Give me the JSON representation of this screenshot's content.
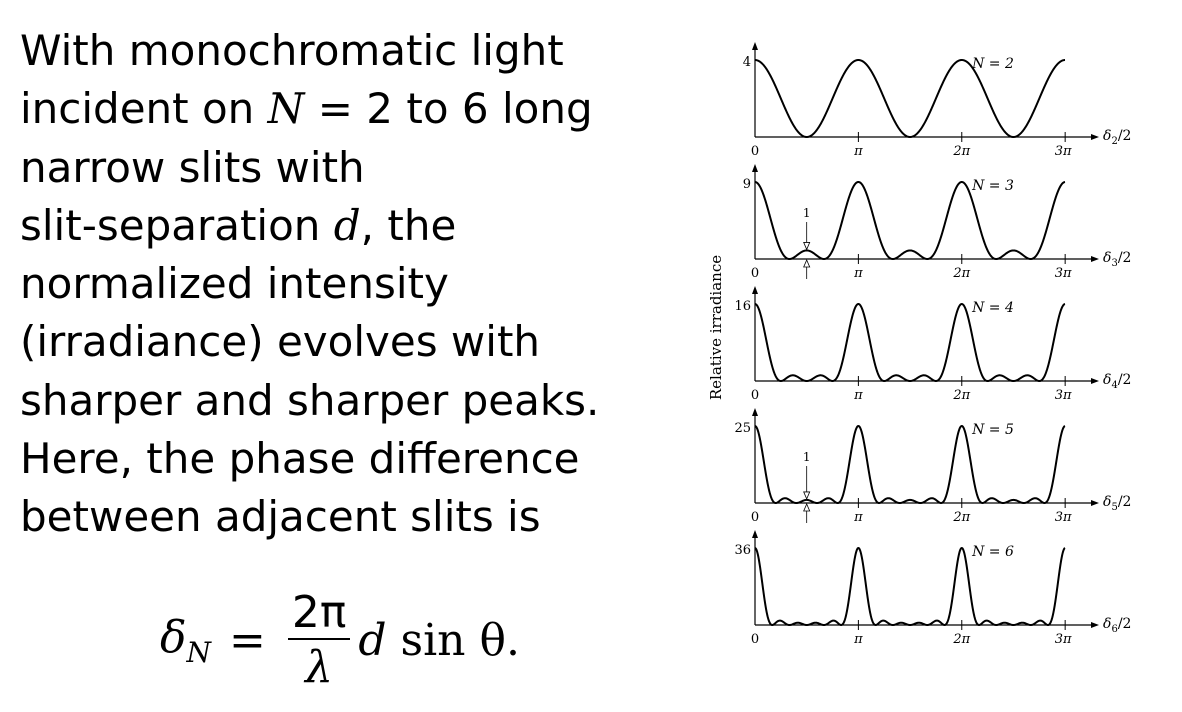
{
  "text": {
    "line1": "With monochromatic light",
    "line2_pre": "incident on ",
    "line2_var": "N",
    "line2_post": " = 2 to 6 long",
    "line3": "narrow slits with",
    "line4_pre": "slit-separation ",
    "line4_var": "d",
    "line4_post": ", the",
    "line5": "normalized intensity",
    "line6": "(irradiance) evolves with",
    "line7": "sharper and sharper peaks.",
    "line8": "Here, the phase difference",
    "line9": "between adjacent slits is"
  },
  "equation": {
    "lhs": "δ",
    "lhs_sub": "N",
    "equals": "=",
    "numerator": "2π",
    "denominator": "λ",
    "rest_var": "d",
    "rest_tail": " sin θ."
  },
  "chart_data": {
    "type": "line",
    "ylabel": "Relative irradiance",
    "x_ticks": [
      "0",
      "π",
      "2π",
      "3π"
    ],
    "xlim": [
      0,
      9.42
    ],
    "panels": [
      {
        "N": 2,
        "label": "N = 2",
        "peak": "4",
        "xlabel": "δ2/2",
        "xlabel_main": "δ",
        "xlabel_sub": "2",
        "xlabel_tail": "/2",
        "arrow": false
      },
      {
        "N": 3,
        "label": "N = 3",
        "peak": "9",
        "xlabel": "δ3/2",
        "xlabel_main": "δ",
        "xlabel_sub": "3",
        "xlabel_tail": "/2",
        "arrow": true,
        "arrow_label": "1"
      },
      {
        "N": 4,
        "label": "N = 4",
        "peak": "16",
        "xlabel": "δ4/2",
        "xlabel_main": "δ",
        "xlabel_sub": "4",
        "xlabel_tail": "/2",
        "arrow": false
      },
      {
        "N": 5,
        "label": "N = 5",
        "peak": "25",
        "xlabel": "δ5/2",
        "xlabel_main": "δ",
        "xlabel_sub": "5",
        "xlabel_tail": "/2",
        "arrow": true,
        "arrow_label": "1"
      },
      {
        "N": 6,
        "label": "N = 6",
        "peak": "36",
        "xlabel": "δ6/2",
        "xlabel_main": "δ",
        "xlabel_sub": "6",
        "xlabel_tail": "/2",
        "arrow": false
      }
    ],
    "function": "sin^2(N·x)/sin^2(x), x = δ_N/2"
  }
}
